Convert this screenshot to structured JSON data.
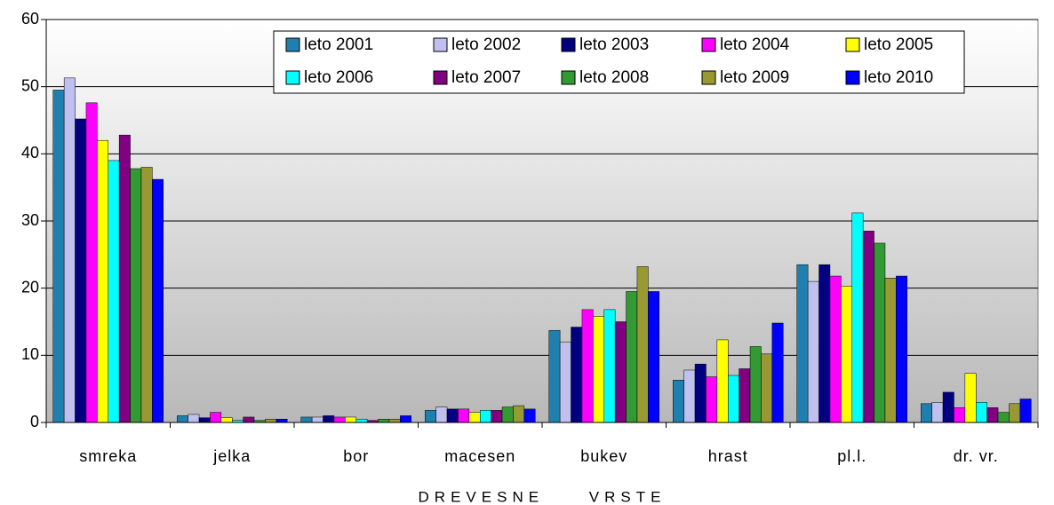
{
  "chart_data": {
    "type": "bar",
    "x_label": "DREVESNE VRSTE",
    "categories": [
      "smreka",
      "jelka",
      "bor",
      "macesen",
      "bukev",
      "hrast",
      "pl.l.",
      "dr. vr."
    ],
    "series": [
      {
        "name": "leto 2001",
        "color": "#1f80b0",
        "values": [
          49.5,
          1.0,
          0.8,
          1.8,
          13.7,
          6.3,
          23.5,
          2.8
        ]
      },
      {
        "name": "leto 2002",
        "color": "#c0c0f0",
        "values": [
          51.3,
          1.2,
          0.8,
          2.3,
          12.0,
          7.8,
          21.0,
          3.0
        ]
      },
      {
        "name": "leto 2003",
        "color": "#000080",
        "values": [
          45.2,
          0.7,
          1.0,
          2.0,
          14.2,
          8.7,
          23.5,
          4.5
        ]
      },
      {
        "name": "leto 2004",
        "color": "#ff00ff",
        "values": [
          47.6,
          1.5,
          0.8,
          2.0,
          16.8,
          6.8,
          21.8,
          2.2
        ]
      },
      {
        "name": "leto 2005",
        "color": "#ffff00",
        "values": [
          42.0,
          0.7,
          0.8,
          1.5,
          15.8,
          12.3,
          20.3,
          7.3
        ]
      },
      {
        "name": "leto 2006",
        "color": "#00ffff",
        "values": [
          39.0,
          0.3,
          0.5,
          1.8,
          16.8,
          7.0,
          31.2,
          3.0
        ]
      },
      {
        "name": "leto 2007",
        "color": "#800080",
        "values": [
          42.8,
          0.8,
          0.3,
          1.8,
          15.0,
          8.0,
          28.5,
          2.2
        ]
      },
      {
        "name": "leto 2008",
        "color": "#339933",
        "values": [
          37.8,
          0.3,
          0.5,
          2.3,
          19.5,
          11.3,
          26.7,
          1.5
        ]
      },
      {
        "name": "leto 2009",
        "color": "#999933",
        "values": [
          38.0,
          0.5,
          0.5,
          2.5,
          23.2,
          10.2,
          21.5,
          2.8
        ]
      },
      {
        "name": "leto 2010",
        "color": "#0000ff",
        "values": [
          36.2,
          0.5,
          1.0,
          2.0,
          19.5,
          14.8,
          21.8,
          3.5
        ]
      }
    ],
    "ylim": [
      0,
      60
    ],
    "yticks": [
      0,
      10,
      20,
      30,
      40,
      50,
      60
    ],
    "grid": true
  }
}
